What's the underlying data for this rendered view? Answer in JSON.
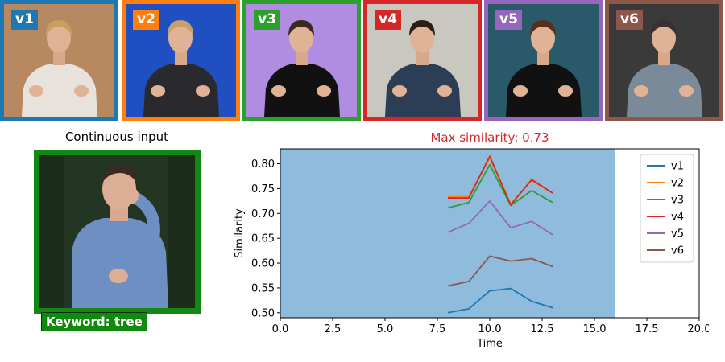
{
  "videos": [
    {
      "label": "v1",
      "color": "#1f77b4",
      "bg": "#b88860",
      "shirt": "#e8e2dc",
      "hair": "#c9a060"
    },
    {
      "label": "v2",
      "color": "#ff7f0e",
      "bg": "#1f4fc0",
      "shirt": "#2a2a2e",
      "hair": "#c8a070"
    },
    {
      "label": "v3",
      "color": "#2ca02c",
      "bg": "#b08de0",
      "shirt": "#111111",
      "hair": "#3a2a20"
    },
    {
      "label": "v4",
      "color": "#d62728",
      "bg": "#c8c8c0",
      "shirt": "#2c3e55",
      "hair": "#2a1e18"
    },
    {
      "label": "v5",
      "color": "#9467bd",
      "bg": "#2a5a6a",
      "shirt": "#111111",
      "hair": "#5a2e1c"
    },
    {
      "label": "v6",
      "color": "#8c564b",
      "bg": "#3a3a3a",
      "shirt": "#7a8a98",
      "hair": "#3a3030"
    }
  ],
  "input_panel": {
    "title": "Continuous input",
    "keyword": "Keyword: tree",
    "frame_color": "#138813"
  },
  "chart_data": {
    "type": "line",
    "title": "Max similarity: 0.73",
    "title_color": "#d62728",
    "xlabel": "Time",
    "ylabel": "Similarity",
    "xlim": [
      0,
      20
    ],
    "ylim": [
      0.49,
      0.83
    ],
    "xticks": [
      0.0,
      2.5,
      5.0,
      7.5,
      10.0,
      12.5,
      15.0,
      17.5,
      20.0
    ],
    "yticks": [
      0.5,
      0.55,
      0.6,
      0.65,
      0.7,
      0.75,
      0.8
    ],
    "shaded_region": {
      "x": [
        0,
        16
      ],
      "color": "#8fbcdc"
    },
    "legend_position": "top-right",
    "x": [
      8,
      9,
      10,
      11,
      12,
      13
    ],
    "series": [
      {
        "name": "v1",
        "color": "#1f77b4",
        "values": [
          0.5,
          0.508,
          0.544,
          0.549,
          0.523,
          0.51
        ]
      },
      {
        "name": "v2",
        "color": "#ff7f0e",
        "values": [
          0.733,
          0.734,
          0.812,
          0.719,
          0.766,
          0.741
        ]
      },
      {
        "name": "v3",
        "color": "#2ca02c",
        "values": [
          0.711,
          0.722,
          0.798,
          0.716,
          0.746,
          0.722
        ]
      },
      {
        "name": "v4",
        "color": "#d62728",
        "values": [
          0.731,
          0.731,
          0.815,
          0.717,
          0.768,
          0.741
        ]
      },
      {
        "name": "v5",
        "color": "#9467bd",
        "values": [
          0.662,
          0.68,
          0.725,
          0.671,
          0.684,
          0.657
        ]
      },
      {
        "name": "v6",
        "color": "#8c564b",
        "values": [
          0.554,
          0.563,
          0.614,
          0.604,
          0.609,
          0.593
        ]
      }
    ]
  }
}
